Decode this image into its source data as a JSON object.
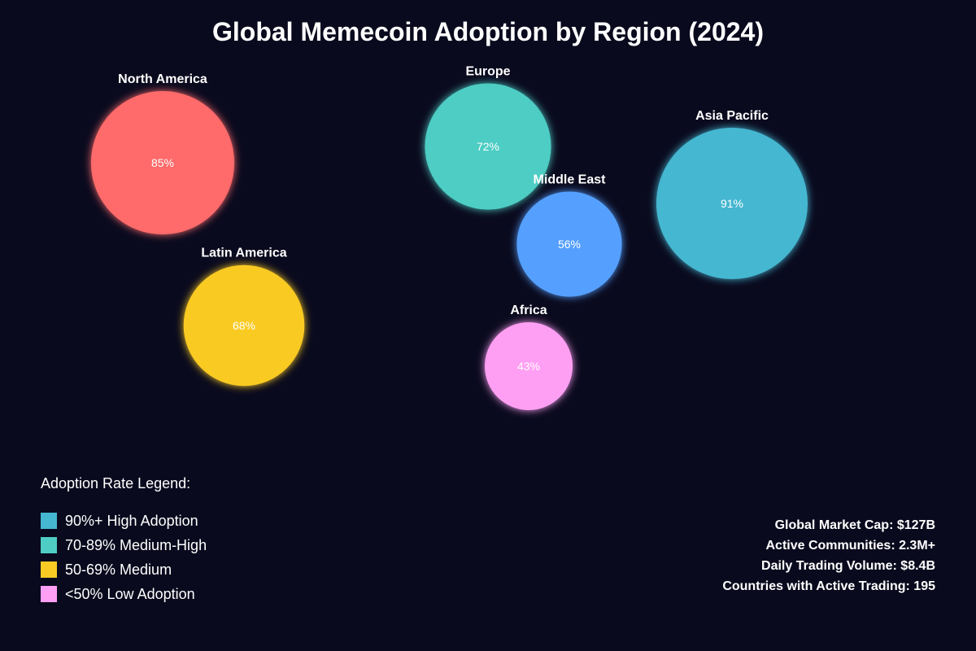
{
  "chart_data": {
    "type": "bubble",
    "title": "Global Memecoin Adoption by Region (2024)",
    "unit": "%",
    "regions": [
      {
        "name": "North America",
        "value": 85,
        "label": "85%",
        "color": "#ff6b6b"
      },
      {
        "name": "Europe",
        "value": 72,
        "label": "72%",
        "color": "#4ecdc4"
      },
      {
        "name": "Asia Pacific",
        "value": 91,
        "label": "91%",
        "color": "#45b7d1"
      },
      {
        "name": "Middle East",
        "value": 56,
        "label": "56%",
        "color": "#54a0ff"
      },
      {
        "name": "Latin America",
        "value": 68,
        "label": "68%",
        "color": "#f9ca24"
      },
      {
        "name": "Africa",
        "value": 43,
        "label": "43%",
        "color": "#ff9ff3"
      }
    ]
  },
  "legend": {
    "title": "Adoption Rate Legend:",
    "items": [
      {
        "label": "90%+ High Adoption",
        "color": "#45b7d1"
      },
      {
        "label": "70-89% Medium-High",
        "color": "#4ecdc4"
      },
      {
        "label": "50-69% Medium",
        "color": "#f9ca24"
      },
      {
        "label": "<50% Low Adoption",
        "color": "#ff9ff3"
      }
    ]
  },
  "stats": [
    "Global Market Cap: $127B",
    "Active Communities: 2.3M+",
    "Daily Trading Volume: $8.4B",
    "Countries with Active Trading: 195"
  ],
  "background": "#0a0a1e"
}
